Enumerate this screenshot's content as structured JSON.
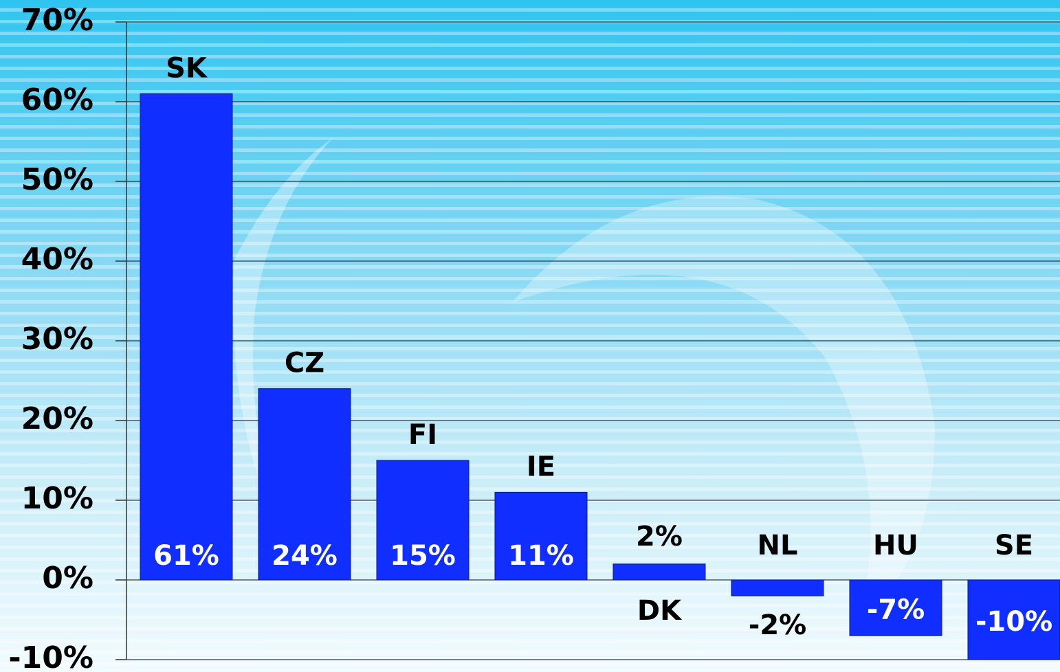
{
  "chart_data": {
    "type": "bar",
    "categories": [
      "SK",
      "CZ",
      "FI",
      "IE",
      "DK",
      "NL",
      "HU",
      "SE"
    ],
    "values": [
      61,
      24,
      15,
      11,
      2,
      -2,
      -7,
      -10
    ],
    "value_labels": [
      "61%",
      "24%",
      "15%",
      "11%",
      "2%",
      "-2%",
      "-7%",
      "-10%"
    ],
    "color": "#0f2eff",
    "ylim": [
      -10,
      70
    ],
    "yticks": [
      {
        "value": -10,
        "label": "-10%"
      },
      {
        "value": 0,
        "label": "0%"
      },
      {
        "value": 10,
        "label": "10%"
      },
      {
        "value": 20,
        "label": "20%"
      },
      {
        "value": 30,
        "label": "30%"
      },
      {
        "value": 40,
        "label": "40%"
      },
      {
        "value": 50,
        "label": "50%"
      },
      {
        "value": 60,
        "label": "60%"
      },
      {
        "value": 70,
        "label": "70%"
      }
    ],
    "grid": true
  }
}
